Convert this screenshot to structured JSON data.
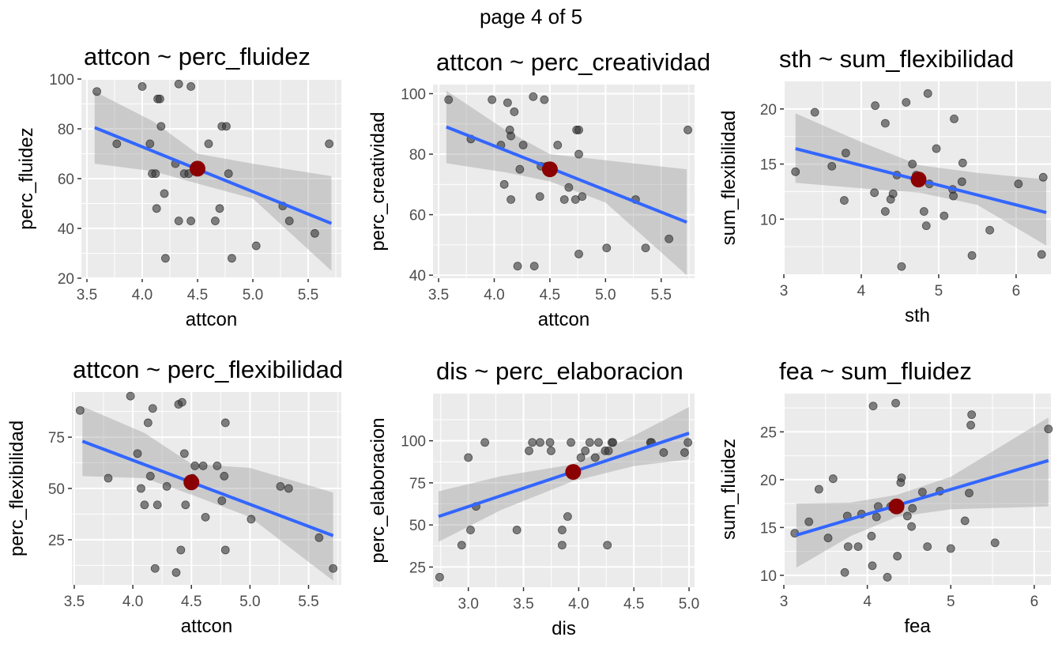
{
  "page_title": "page 4 of 5",
  "colors": {
    "panel_background": "#ebebeb",
    "grid": "#ffffff",
    "point": "#333333",
    "fit_line": "#3366ff",
    "confidence_band": "#999999",
    "mean_point": "#8b0000"
  },
  "chart_data": [
    {
      "type": "scatter",
      "title": "attcon ~ perc_fluidez",
      "xlabel": "attcon",
      "ylabel": "perc_fluidez",
      "xlim": [
        3.45,
        5.8
      ],
      "ylim": [
        20,
        100
      ],
      "xticks": [
        3.5,
        4.0,
        4.5,
        5.0,
        5.5
      ],
      "xtick_labels": [
        "3.5",
        "4.0",
        "4.5",
        "5.0",
        "5.5"
      ],
      "yticks": [
        20,
        40,
        60,
        80,
        100
      ],
      "ytick_labels": [
        "20",
        "40",
        "60",
        "80",
        "100"
      ],
      "points": [
        [
          3.59,
          95
        ],
        [
          3.77,
          74
        ],
        [
          4.0,
          97
        ],
        [
          4.07,
          74
        ],
        [
          4.09,
          62
        ],
        [
          4.12,
          62
        ],
        [
          4.13,
          48
        ],
        [
          4.14,
          92
        ],
        [
          4.16,
          92
        ],
        [
          4.17,
          81
        ],
        [
          4.2,
          54
        ],
        [
          4.21,
          28
        ],
        [
          4.3,
          66
        ],
        [
          4.33,
          98
        ],
        [
          4.33,
          43
        ],
        [
          4.38,
          62
        ],
        [
          4.42,
          62
        ],
        [
          4.44,
          97
        ],
        [
          4.44,
          43
        ],
        [
          4.6,
          74
        ],
        [
          4.66,
          43
        ],
        [
          4.7,
          48
        ],
        [
          4.72,
          81
        ],
        [
          4.76,
          81
        ],
        [
          4.78,
          62
        ],
        [
          4.81,
          28
        ],
        [
          5.03,
          33
        ],
        [
          5.27,
          49
        ],
        [
          5.33,
          43
        ],
        [
          5.56,
          38
        ],
        [
          5.69,
          74
        ]
      ],
      "fit": {
        "x": [
          3.57,
          5.71
        ],
        "y": [
          80.5,
          42.0
        ]
      },
      "band": {
        "x": [
          3.57,
          4.1,
          4.5,
          5.0,
          5.71
        ],
        "lower": [
          66,
          63,
          58,
          52,
          23
        ],
        "upper": [
          95,
          83,
          70,
          66,
          61
        ]
      },
      "mean_point": [
        4.5,
        64
      ]
    },
    {
      "type": "scatter",
      "title": "attcon ~ perc_creatividad",
      "xlabel": "attcon",
      "ylabel": "perc_creatividad",
      "xlim": [
        3.45,
        5.8
      ],
      "ylim": [
        39,
        103
      ],
      "xticks": [
        3.5,
        4.0,
        4.5,
        5.0,
        5.5
      ],
      "xtick_labels": [
        "3.5",
        "4.0",
        "4.5",
        "5.0",
        "5.5"
      ],
      "yticks": [
        40,
        60,
        80,
        100
      ],
      "ytick_labels": [
        "40",
        "60",
        "80",
        "100"
      ],
      "points": [
        [
          3.59,
          98
        ],
        [
          3.79,
          85
        ],
        [
          3.98,
          98
        ],
        [
          4.06,
          83
        ],
        [
          4.09,
          70
        ],
        [
          4.12,
          97
        ],
        [
          4.14,
          88
        ],
        [
          4.15,
          86
        ],
        [
          4.15,
          65
        ],
        [
          4.18,
          94
        ],
        [
          4.21,
          43
        ],
        [
          4.23,
          75
        ],
        [
          4.26,
          83
        ],
        [
          4.35,
          99
        ],
        [
          4.36,
          43
        ],
        [
          4.41,
          66
        ],
        [
          4.42,
          76
        ],
        [
          4.45,
          98
        ],
        [
          4.47,
          76
        ],
        [
          4.57,
          83
        ],
        [
          4.63,
          65
        ],
        [
          4.67,
          69
        ],
        [
          4.73,
          65
        ],
        [
          4.74,
          88
        ],
        [
          4.76,
          88
        ],
        [
          4.76,
          80
        ],
        [
          4.76,
          47
        ],
        [
          4.79,
          66
        ],
        [
          5.01,
          49
        ],
        [
          5.27,
          65
        ],
        [
          5.36,
          49
        ],
        [
          5.57,
          52
        ],
        [
          5.74,
          88
        ]
      ],
      "fit": {
        "x": [
          3.57,
          5.73
        ],
        "y": [
          89.0,
          57.5
        ]
      },
      "band": {
        "x": [
          3.57,
          4.1,
          4.5,
          5.0,
          5.73
        ],
        "lower": [
          77,
          74,
          71,
          64,
          40
        ],
        "upper": [
          101,
          88,
          80,
          78,
          75
        ]
      },
      "mean_point": [
        4.5,
        75
      ]
    },
    {
      "type": "scatter",
      "title": "sth ~ sum_flexibilidad",
      "xlabel": "sth",
      "ylabel": "sum_flexibilidad",
      "xlim": [
        3.0,
        6.45
      ],
      "ylim": [
        5.0,
        22.5
      ],
      "xticks": [
        3,
        4,
        5,
        6
      ],
      "xtick_labels": [
        "3",
        "4",
        "5",
        "6"
      ],
      "yticks": [
        10,
        15,
        20
      ],
      "ytick_labels": [
        "10",
        "15",
        "20"
      ],
      "points": [
        [
          3.15,
          14.3
        ],
        [
          3.4,
          19.7
        ],
        [
          3.62,
          14.8
        ],
        [
          3.78,
          11.7
        ],
        [
          3.8,
          16
        ],
        [
          4.17,
          12.4
        ],
        [
          4.18,
          20.3
        ],
        [
          4.31,
          18.7
        ],
        [
          4.31,
          10.7
        ],
        [
          4.38,
          11.8
        ],
        [
          4.41,
          12.3
        ],
        [
          4.46,
          14
        ],
        [
          4.52,
          5.7
        ],
        [
          4.58,
          20.6
        ],
        [
          4.66,
          15
        ],
        [
          4.71,
          14
        ],
        [
          4.74,
          13.6
        ],
        [
          4.81,
          10.7
        ],
        [
          4.84,
          9.4
        ],
        [
          4.86,
          21.4
        ],
        [
          4.88,
          13.2
        ],
        [
          4.97,
          16.4
        ],
        [
          5.07,
          10.3
        ],
        [
          5.18,
          12.7
        ],
        [
          5.19,
          12.1
        ],
        [
          5.2,
          19.1
        ],
        [
          5.3,
          13.4
        ],
        [
          5.31,
          15.1
        ],
        [
          5.43,
          6.7
        ],
        [
          5.66,
          9
        ],
        [
          6.03,
          13.2
        ],
        [
          6.33,
          6.8
        ],
        [
          6.35,
          13.8
        ]
      ],
      "fit": {
        "x": [
          3.15,
          6.39
        ],
        "y": [
          16.4,
          10.6
        ]
      },
      "band": {
        "x": [
          3.15,
          4.0,
          4.75,
          5.5,
          6.39
        ],
        "lower": [
          13.3,
          12.8,
          12.4,
          11.3,
          7.6
        ],
        "upper": [
          19.6,
          17.0,
          14.9,
          14.2,
          13.6
        ]
      },
      "mean_point": [
        4.74,
        13.6
      ]
    },
    {
      "type": "scatter",
      "title": "attcon ~ perc_flexibilidad",
      "xlabel": "attcon",
      "ylabel": "perc_flexibilidad",
      "xlim": [
        3.48,
        5.78
      ],
      "ylim": [
        3,
        97
      ],
      "xticks": [
        3.5,
        4.0,
        4.5,
        5.0,
        5.5
      ],
      "xtick_labels": [
        "3.5",
        "4.0",
        "4.5",
        "5.0",
        "5.5"
      ],
      "yticks": [
        25,
        50,
        75
      ],
      "ytick_labels": [
        "25",
        "50",
        "75"
      ],
      "points": [
        [
          3.55,
          88
        ],
        [
          3.79,
          55
        ],
        [
          3.98,
          95
        ],
        [
          4.04,
          67
        ],
        [
          4.07,
          50
        ],
        [
          4.1,
          42
        ],
        [
          4.13,
          82
        ],
        [
          4.15,
          56
        ],
        [
          4.17,
          89
        ],
        [
          4.19,
          11
        ],
        [
          4.21,
          42
        ],
        [
          4.29,
          51
        ],
        [
          4.37,
          9
        ],
        [
          4.39,
          91
        ],
        [
          4.41,
          20
        ],
        [
          4.42,
          92
        ],
        [
          4.44,
          67
        ],
        [
          4.45,
          42
        ],
        [
          4.51,
          55
        ],
        [
          4.53,
          61
        ],
        [
          4.6,
          61
        ],
        [
          4.62,
          36
        ],
        [
          4.72,
          61
        ],
        [
          4.76,
          44
        ],
        [
          4.78,
          56
        ],
        [
          4.79,
          82
        ],
        [
          4.79,
          20
        ],
        [
          5.01,
          35
        ],
        [
          5.26,
          51
        ],
        [
          5.33,
          50
        ],
        [
          5.59,
          26
        ],
        [
          5.71,
          11
        ]
      ],
      "fit": {
        "x": [
          3.57,
          5.71
        ],
        "y": [
          73.0,
          27.0
        ]
      },
      "band": {
        "x": [
          3.57,
          4.1,
          4.5,
          5.0,
          5.71
        ],
        "lower": [
          56,
          55,
          47,
          36,
          5
        ],
        "upper": [
          90,
          77,
          62,
          60,
          48
        ]
      },
      "mean_point": [
        4.5,
        53
      ]
    },
    {
      "type": "scatter",
      "title": "dis ~ perc_elaboracion",
      "xlabel": "dis",
      "ylabel": "perc_elaboracion",
      "xlim": [
        2.68,
        5.05
      ],
      "ylim": [
        13,
        128
      ],
      "xticks": [
        3.0,
        3.5,
        4.0,
        4.5,
        5.0
      ],
      "xtick_labels": [
        "3.0",
        "3.5",
        "4.0",
        "4.5",
        "5.0"
      ],
      "yticks": [
        25,
        50,
        75,
        100
      ],
      "ytick_labels": [
        "25",
        "50",
        "75",
        "100"
      ],
      "points": [
        [
          2.74,
          19
        ],
        [
          2.94,
          38
        ],
        [
          3.0,
          90
        ],
        [
          3.02,
          47
        ],
        [
          3.07,
          61
        ],
        [
          3.15,
          99
        ],
        [
          3.44,
          47
        ],
        [
          3.55,
          94
        ],
        [
          3.58,
          99
        ],
        [
          3.65,
          99
        ],
        [
          3.74,
          99
        ],
        [
          3.75,
          94
        ],
        [
          3.85,
          47
        ],
        [
          3.85,
          38
        ],
        [
          3.9,
          55
        ],
        [
          3.93,
          99
        ],
        [
          3.95,
          81
        ],
        [
          4.02,
          90
        ],
        [
          4.06,
          94
        ],
        [
          4.1,
          99
        ],
        [
          4.15,
          90
        ],
        [
          4.18,
          99
        ],
        [
          4.24,
          94
        ],
        [
          4.26,
          38
        ],
        [
          4.27,
          94
        ],
        [
          4.3,
          99
        ],
        [
          4.31,
          99
        ],
        [
          4.65,
          99
        ],
        [
          4.66,
          99
        ],
        [
          4.77,
          93
        ],
        [
          4.96,
          93
        ],
        [
          4.99,
          99
        ]
      ],
      "fit": {
        "x": [
          2.73,
          5.0
        ],
        "y": [
          55.0,
          104.5
        ]
      },
      "band": {
        "x": [
          2.73,
          3.3,
          3.95,
          4.5,
          5.0
        ],
        "lower": [
          40,
          59,
          76,
          85,
          89
        ],
        "upper": [
          70,
          79,
          86,
          103,
          120
        ]
      },
      "mean_point": [
        3.95,
        81.5
      ]
    },
    {
      "type": "scatter",
      "title": "fea ~ sum_fluidez",
      "xlabel": "fea",
      "ylabel": "sum_fluidez",
      "xlim": [
        3.0,
        6.2
      ],
      "ylim": [
        9.0,
        29.0
      ],
      "xticks": [
        3,
        4,
        5,
        6
      ],
      "xtick_labels": [
        "3",
        "4",
        "5",
        "6"
      ],
      "yticks": [
        10,
        15,
        20,
        25
      ],
      "ytick_labels": [
        "10",
        "15",
        "20",
        "25"
      ],
      "points": [
        [
          3.13,
          14.4
        ],
        [
          3.3,
          15.6
        ],
        [
          3.42,
          19
        ],
        [
          3.53,
          13.9
        ],
        [
          3.59,
          20.1
        ],
        [
          3.73,
          10.3
        ],
        [
          3.76,
          16.2
        ],
        [
          3.77,
          13
        ],
        [
          3.89,
          13
        ],
        [
          3.93,
          16.4
        ],
        [
          4.05,
          14.1
        ],
        [
          4.06,
          11
        ],
        [
          4.07,
          27.7
        ],
        [
          4.11,
          16.1
        ],
        [
          4.13,
          17.2
        ],
        [
          4.24,
          9.8
        ],
        [
          4.28,
          17.2
        ],
        [
          4.34,
          28
        ],
        [
          4.36,
          12
        ],
        [
          4.4,
          19.7
        ],
        [
          4.41,
          20.2
        ],
        [
          4.48,
          16.2
        ],
        [
          4.53,
          15.1
        ],
        [
          4.54,
          17
        ],
        [
          4.66,
          18.7
        ],
        [
          4.72,
          13
        ],
        [
          4.87,
          18.8
        ],
        [
          5.0,
          12.8
        ],
        [
          5.17,
          15.7
        ],
        [
          5.22,
          18.6
        ],
        [
          5.24,
          25.7
        ],
        [
          5.25,
          26.8
        ],
        [
          5.53,
          13.4
        ],
        [
          6.17,
          25.3
        ]
      ],
      "fit": {
        "x": [
          3.15,
          6.17
        ],
        "y": [
          14.2,
          22.0
        ]
      },
      "band": {
        "x": [
          3.15,
          3.8,
          4.35,
          5.0,
          6.17
        ],
        "lower": [
          10.8,
          14.1,
          16.1,
          16.9,
          17.2
        ],
        "upper": [
          17.5,
          17.6,
          18.4,
          20.3,
          26.5
        ]
      },
      "mean_point": [
        4.35,
        17.2
      ]
    }
  ]
}
